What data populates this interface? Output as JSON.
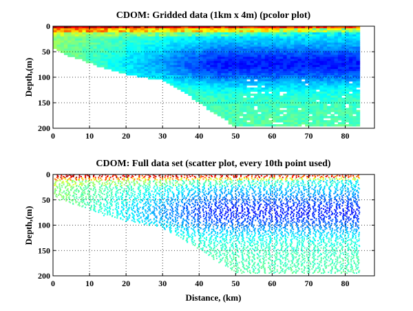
{
  "chart_data": [
    {
      "type": "heatmap",
      "variable": "CDOM",
      "title": "CDOM: Gridded data (1km x 4m) (pcolor plot)",
      "xlabel": "",
      "ylabel": "Depth,(m)",
      "xlim": [
        0,
        88
      ],
      "ylim": [
        0,
        200
      ],
      "y_reversed": true,
      "xticks": [
        0,
        10,
        20,
        30,
        40,
        50,
        60,
        70,
        80
      ],
      "yticks": [
        0,
        50,
        100,
        150,
        200
      ],
      "grid": true,
      "colormap": "jet",
      "grid_cell": {
        "dx_km": 1,
        "dz_m": 4
      },
      "data_extent_km": [
        0,
        84
      ],
      "bottom_depth_profile": {
        "x": [
          0,
          2,
          6,
          10,
          14,
          18,
          22,
          26,
          30,
          34,
          38,
          42,
          46,
          48,
          50,
          52,
          60,
          70,
          80,
          84
        ],
        "depth": [
          40,
          50,
          60,
          70,
          80,
          88,
          95,
          100,
          104,
          122,
          138,
          158,
          175,
          186,
          196,
          196,
          196,
          196,
          196,
          196
        ]
      },
      "value_pattern": {
        "surface_layer_depth_m": [
          0,
          20
        ],
        "surface": "high (red/yellow)",
        "mid_depth_offshore": "low (blue)",
        "deep_and_nearshore": "intermediate (cyan/green)"
      }
    },
    {
      "type": "scatter",
      "variable": "CDOM",
      "title": "CDOM: Full data set (scatter plot, every 10th point used)",
      "xlabel": "Distance, (km)",
      "ylabel": "Depth,(m)",
      "xlim": [
        0,
        88
      ],
      "ylim": [
        0,
        200
      ],
      "y_reversed": true,
      "xticks": [
        0,
        10,
        20,
        30,
        40,
        50,
        60,
        70,
        80
      ],
      "yticks": [
        0,
        50,
        100,
        150,
        200
      ],
      "grid": true,
      "colormap": "jet",
      "subsample": "every 10th point",
      "profile_positions_km": [
        1,
        2.3,
        3.5,
        4.8,
        6,
        7.5,
        8.5,
        10,
        11.5,
        13,
        14.5,
        16,
        17.5,
        19,
        20.5,
        22,
        23.5,
        25,
        26.5,
        28,
        29.5,
        31,
        32.5,
        34,
        35.5,
        37,
        38.5,
        40,
        41.5,
        43,
        44.5,
        46,
        47.5,
        49,
        50.5,
        52,
        53.5,
        55,
        56.5,
        58,
        59.5,
        61,
        62.5,
        64,
        65.5,
        67,
        68.5,
        70,
        71.5,
        73,
        74.5,
        76,
        77.5,
        79,
        80.5,
        82,
        83.3
      ]
    }
  ]
}
